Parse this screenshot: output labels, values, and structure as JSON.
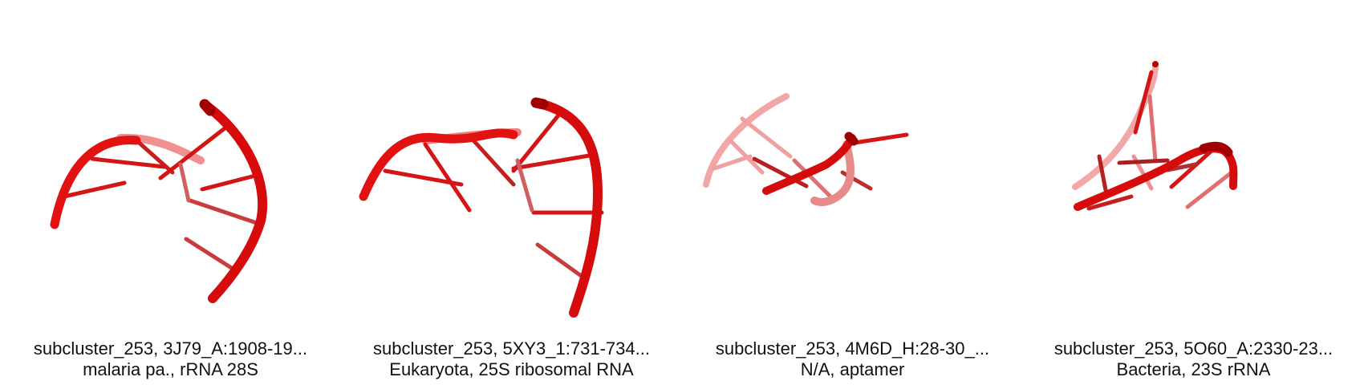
{
  "panels": [
    {
      "title": "subcluster_253, 3J79_A:1908-19...",
      "subtitle": "malaria pa., rRNA 28S",
      "icon": "rna-backbone-structure-image"
    },
    {
      "title": "subcluster_253, 5XY3_1:731-734...",
      "subtitle": "Eukaryota, 25S ribosomal RNA",
      "icon": "rna-backbone-structure-image"
    },
    {
      "title": "subcluster_253, 4M6D_H:28-30_...",
      "subtitle": "N/A, aptamer",
      "icon": "rna-backbone-structure-image"
    },
    {
      "title": "subcluster_253, 5O60_A:2330-23...",
      "subtitle": "Bacteria, 23S rRNA",
      "icon": "rna-backbone-structure-image"
    }
  ],
  "colors": {
    "strand": "#e01010",
    "strand_dark": "#a80000",
    "strand_faded": "#f08a8a",
    "caption_text": "#111111"
  }
}
